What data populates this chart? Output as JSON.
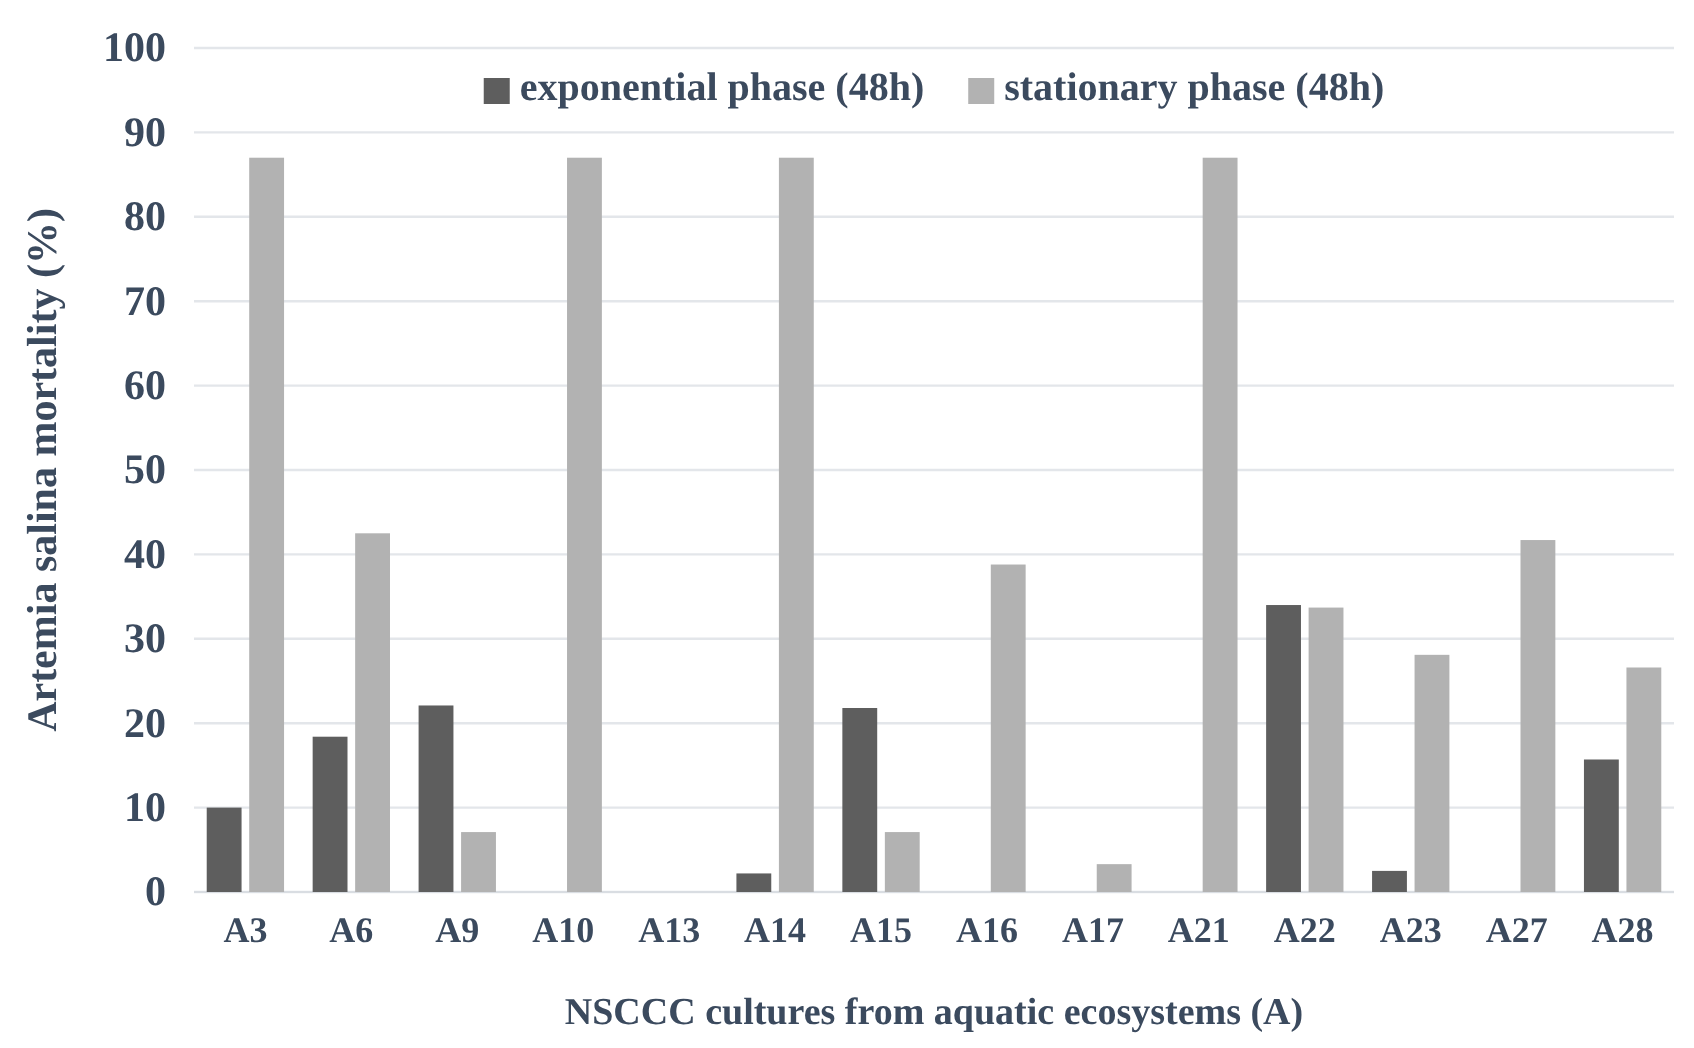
{
  "chart_data": {
    "type": "bar",
    "xlabel": "NSCCC cultures from aquatic ecosystems (A)",
    "ylabel": "Artemia salina mortality (%)",
    "categories": [
      "A3",
      "A6",
      "A9",
      "A10",
      "A13",
      "A14",
      "A15",
      "A16",
      "A17",
      "A21",
      "A22",
      "A23",
      "A27",
      "A28"
    ],
    "series": [
      {
        "name": "exponential phase (48h)",
        "color": "#5e5e5e",
        "values": [
          10,
          18.4,
          22.1,
          0,
          0,
          2.2,
          21.8,
          0,
          0,
          0,
          34,
          2.5,
          0,
          15.7
        ]
      },
      {
        "name": "stationary phase (48h)",
        "color": "#b2b2b2",
        "values": [
          87,
          42.5,
          7.1,
          87,
          0,
          87,
          7.1,
          38.8,
          3.3,
          87,
          33.7,
          28.1,
          41.7,
          26.6
        ]
      }
    ],
    "ylim": [
      0,
      100
    ],
    "yticks": [
      0,
      10,
      20,
      30,
      40,
      50,
      60,
      70,
      80,
      90,
      100
    ],
    "grid": "y",
    "legend": "top"
  }
}
